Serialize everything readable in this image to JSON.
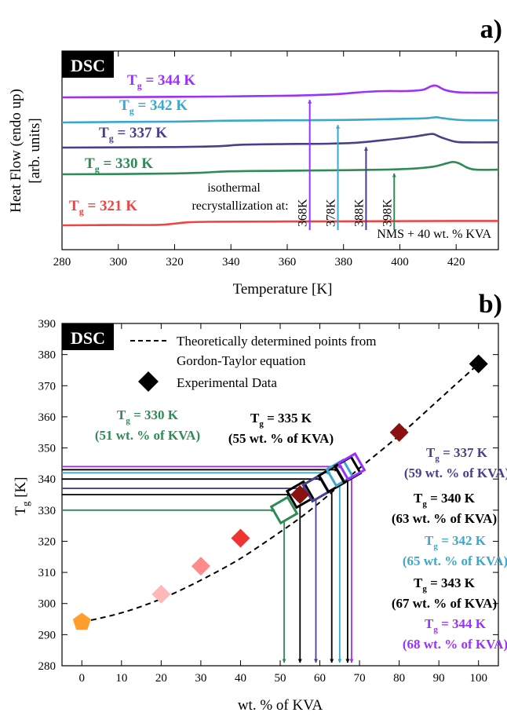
{
  "chart_data": [
    {
      "panel": "a)",
      "type": "line",
      "badge": "DSC",
      "xlabel": "Temperature [K]",
      "ylabel": "Heat Flow (endo up)",
      "ylabel2": "[arb. units]",
      "xlim": [
        280,
        435
      ],
      "xticks": [
        280,
        300,
        320,
        340,
        360,
        380,
        400,
        420
      ],
      "series": [
        {
          "name": "321 K",
          "color": "#ee4444",
          "points": [
            [
              280,
              0.0
            ],
            [
              300,
              0.06
            ],
            [
              315,
              0.1
            ],
            [
              325,
              0.55
            ],
            [
              335,
              0.65
            ],
            [
              360,
              0.7
            ],
            [
              390,
              0.75
            ],
            [
              420,
              0.8
            ],
            [
              435,
              0.8
            ]
          ]
        },
        {
          "name": "330 K",
          "color": "#2e8b57",
          "points": [
            [
              280,
              1.2
            ],
            [
              300,
              1.25
            ],
            [
              320,
              1.35
            ],
            [
              330,
              1.5
            ],
            [
              340,
              1.75
            ],
            [
              360,
              1.85
            ],
            [
              380,
              1.95
            ],
            [
              395,
              2.05
            ],
            [
              405,
              2.25
            ],
            [
              412,
              2.6
            ],
            [
              417,
              3.25
            ],
            [
              419,
              3.45
            ],
            [
              421,
              3.2
            ],
            [
              424,
              2.4
            ],
            [
              427,
              2.05
            ],
            [
              435,
              2.05
            ]
          ]
        },
        {
          "name": "337 K",
          "color": "#48408c",
          "points": [
            [
              280,
              2.9
            ],
            [
              300,
              2.95
            ],
            [
              320,
              3.0
            ],
            [
              335,
              3.15
            ],
            [
              345,
              3.45
            ],
            [
              360,
              3.55
            ],
            [
              375,
              3.62
            ],
            [
              385,
              3.8
            ],
            [
              395,
              4.3
            ],
            [
              405,
              4.9
            ],
            [
              410,
              5.3
            ],
            [
              412,
              5.35
            ],
            [
              415,
              4.7
            ],
            [
              420,
              3.95
            ],
            [
              425,
              3.85
            ],
            [
              435,
              3.85
            ]
          ]
        },
        {
          "name": "342 K",
          "color": "#3aa8cc",
          "points": [
            [
              280,
              4.75
            ],
            [
              300,
              4.85
            ],
            [
              320,
              4.9
            ],
            [
              335,
              5.05
            ],
            [
              345,
              5.1
            ],
            [
              360,
              5.15
            ],
            [
              380,
              5.2
            ],
            [
              395,
              5.35
            ],
            [
              405,
              5.45
            ],
            [
              410,
              5.55
            ],
            [
              413,
              5.7
            ],
            [
              415,
              5.55
            ],
            [
              420,
              5.25
            ],
            [
              425,
              5.15
            ],
            [
              435,
              5.15
            ]
          ]
        },
        {
          "name": "344 K",
          "color": "#9b30ff",
          "points": [
            [
              280,
              5.95
            ],
            [
              300,
              6.0
            ],
            [
              320,
              6.05
            ],
            [
              335,
              6.1
            ],
            [
              350,
              6.2
            ],
            [
              365,
              6.3
            ],
            [
              378,
              6.55
            ],
            [
              388,
              6.95
            ],
            [
              395,
              7.1
            ],
            [
              402,
              7.1
            ],
            [
              408,
              7.3
            ],
            [
              411,
              7.95
            ],
            [
              413,
              8.05
            ],
            [
              416,
              7.3
            ],
            [
              420,
              6.9
            ],
            [
              425,
              6.8
            ],
            [
              435,
              6.8
            ]
          ]
        }
      ],
      "tg_labels": [
        {
          "prefix": "T",
          "sub": "g",
          "text": " = 344 K",
          "color": "#9b30ff"
        },
        {
          "prefix": "T",
          "sub": "g",
          "text": " = 342 K",
          "color": "#3aa8cc"
        },
        {
          "prefix": "T",
          "sub": "g",
          "text": " = 337 K",
          "color": "#48408c"
        },
        {
          "prefix": "T",
          "sub": "g",
          "text": " = 330 K",
          "color": "#2e8b57"
        },
        {
          "prefix": "T",
          "sub": "g",
          "text": " = 321 K",
          "color": "#ee4444"
        }
      ],
      "annotation_line1": "isothermal",
      "annotation_line2": "recrystallization at:",
      "recryst": [
        {
          "label": "368K",
          "temp": 368,
          "color": "#9b30ff",
          "to": 6.2
        },
        {
          "label": "378K",
          "temp": 378,
          "color": "#3aa8cc",
          "to": 5.0
        },
        {
          "label": "388K",
          "temp": 388,
          "color": "#48408c",
          "to": 3.7
        },
        {
          "label": "398K",
          "temp": 398,
          "color": "#2e8b57",
          "to": 2.05
        }
      ],
      "sample_label": "NMS + 40 wt. % KVA",
      "sample_color": "#ee4444"
    },
    {
      "panel": "b)",
      "type": "scatter",
      "badge": "DSC",
      "xlabel": "wt. % of KVA",
      "ylabel_main": "T",
      "ylabel_sub": "g",
      "ylabel_unit": " [K]",
      "xlim": [
        -5,
        105
      ],
      "ylim": [
        280,
        390
      ],
      "xticks": [
        0,
        10,
        20,
        30,
        40,
        50,
        60,
        70,
        80,
        90,
        100
      ],
      "yticks": [
        280,
        290,
        300,
        310,
        320,
        330,
        340,
        350,
        360,
        370,
        380,
        390
      ],
      "legend_line1": "Theoretically determined points from",
      "legend_line2": "Gordon-Taylor equation",
      "legend_exp": "Experimental Data",
      "fit_curve": [
        [
          0,
          294
        ],
        [
          10,
          297
        ],
        [
          20,
          301.5
        ],
        [
          30,
          307.5
        ],
        [
          40,
          314.5
        ],
        [
          50,
          323
        ],
        [
          55,
          327.5
        ],
        [
          60,
          332.5
        ],
        [
          65,
          338
        ],
        [
          70,
          343.5
        ],
        [
          80,
          354
        ],
        [
          90,
          365.5
        ],
        [
          100,
          377
        ]
      ],
      "experimental": [
        {
          "x": 0,
          "y": 294,
          "color": "#ff9e2c",
          "shape": "pentagon"
        },
        {
          "x": 20,
          "y": 303,
          "color": "#ffb8b8",
          "shape": "diamond"
        },
        {
          "x": 30,
          "y": 312,
          "color": "#ff8a8a",
          "shape": "diamond"
        },
        {
          "x": 40,
          "y": 321,
          "color": "#ee3333",
          "shape": "diamond"
        },
        {
          "x": 55,
          "y": 335,
          "color": "#8b1010",
          "shape": "diamond"
        },
        {
          "x": 80,
          "y": 355,
          "color": "#8b1010",
          "shape": "diamond"
        },
        {
          "x": 100,
          "y": 377,
          "color": "#000000",
          "shape": "diamond"
        }
      ],
      "theoretical": [
        {
          "x": 51,
          "y": 330,
          "color": "#2e8b57"
        },
        {
          "x": 55,
          "y": 335,
          "color": "#000000"
        },
        {
          "x": 59,
          "y": 337,
          "color": "#48408c"
        },
        {
          "x": 63,
          "y": 340,
          "color": "#000000"
        },
        {
          "x": 65,
          "y": 342,
          "color": "#3aa8cc"
        },
        {
          "x": 67,
          "y": 343,
          "color": "#000000"
        },
        {
          "x": 68,
          "y": 344,
          "color": "#9b30ff"
        }
      ],
      "tg_labels": [
        {
          "line1": " = 330 K",
          "line2": "(51 wt. % of KVA)",
          "color": "#2e8b57"
        },
        {
          "line1": " = 335 K",
          "line2": "(55 wt. % of KVA)",
          "color": "#000000"
        },
        {
          "line1": " = 337 K",
          "line2": "(59 wt. % of KVA)",
          "color": "#48408c"
        },
        {
          "line1": " = 340 K",
          "line2": "(63 wt. % of KVA)",
          "color": "#000000"
        },
        {
          "line1": " = 342 K",
          "line2": "(65 wt. % of KVA)",
          "color": "#3aa8cc"
        },
        {
          "line1": " = 343 K",
          "line2": "(67 wt. % of KVA)",
          "color": "#000000"
        },
        {
          "line1": " = 344 K",
          "line2": "(68 wt. % of KVA)",
          "color": "#9b30ff"
        }
      ]
    }
  ]
}
